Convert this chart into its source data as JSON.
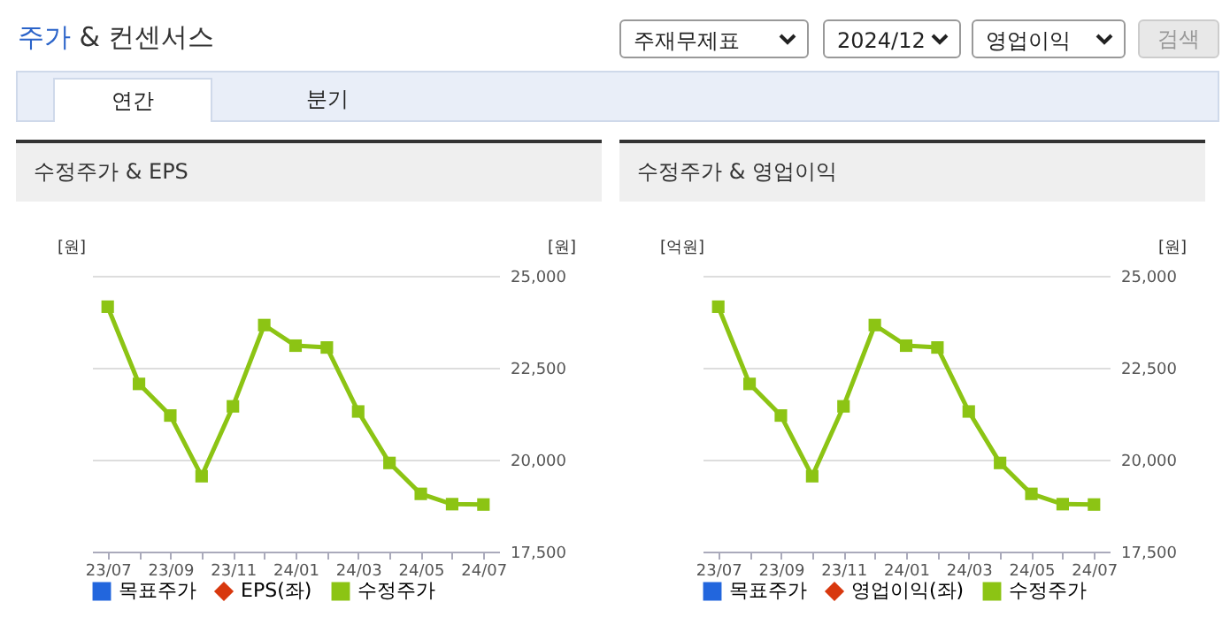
{
  "chart_data": [
    {
      "type": "other",
      "title": "주가 & 컨센서스",
      "annotations": [
        "주재무제표",
        "2024/12",
        "영업이익",
        "검색",
        "연간",
        "분기"
      ]
    },
    {
      "type": "line",
      "title": "수정주가 & EPS",
      "ylabel": "[원]",
      "y2label": "[원]",
      "categories": [
        "23/07",
        null,
        "23/09",
        null,
        "23/11",
        null,
        "24/01",
        null,
        "24/03",
        null,
        "24/05",
        null,
        "24/07"
      ],
      "series": [
        {
          "name": "목표주가",
          "marker": "square",
          "color": "#2266dd",
          "values": [
            null,
            null,
            null,
            null,
            null,
            null,
            null,
            null,
            null,
            null,
            null,
            null,
            null
          ]
        },
        {
          "name": "EPS(좌)",
          "marker": "diamond",
          "color": "#d8380e",
          "values": [
            null,
            null,
            null,
            null,
            null,
            null,
            null,
            null,
            null,
            null,
            null,
            null,
            null
          ]
        },
        {
          "name": "수정주가",
          "axis": "y2",
          "marker": "square",
          "color": "#8cc414",
          "values": [
            24160,
            22060,
            21200,
            19550,
            21450,
            23660,
            23100,
            23050,
            21310,
            19910,
            19070,
            18790,
            18780
          ]
        }
      ],
      "y2lim": [
        17500,
        25000
      ],
      "y2ticks": [
        {
          "value": 17500,
          "label": "17,500"
        },
        {
          "value": 20000,
          "label": "20,000"
        },
        {
          "value": 22500,
          "label": "22,500"
        },
        {
          "value": 25000,
          "label": "25,000"
        }
      ],
      "grid": true,
      "legend": "bottom"
    },
    {
      "type": "line",
      "title": "수정주가 & 영업이익",
      "ylabel": "[억원]",
      "y2label": "[원]",
      "categories": [
        "23/07",
        null,
        "23/09",
        null,
        "23/11",
        null,
        "24/01",
        null,
        "24/03",
        null,
        "24/05",
        null,
        "24/07"
      ],
      "series": [
        {
          "name": "목표주가",
          "marker": "square",
          "color": "#2266dd",
          "values": [
            null,
            null,
            null,
            null,
            null,
            null,
            null,
            null,
            null,
            null,
            null,
            null,
            null
          ]
        },
        {
          "name": "영업이익(좌)",
          "marker": "diamond",
          "color": "#d8380e",
          "values": [
            null,
            null,
            null,
            null,
            null,
            null,
            null,
            null,
            null,
            null,
            null,
            null,
            null
          ]
        },
        {
          "name": "수정주가",
          "axis": "y2",
          "marker": "square",
          "color": "#8cc414",
          "values": [
            24160,
            22060,
            21200,
            19550,
            21450,
            23660,
            23100,
            23050,
            21310,
            19910,
            19070,
            18790,
            18780
          ]
        }
      ],
      "y2lim": [
        17500,
        25000
      ],
      "y2ticks": [
        {
          "value": 17500,
          "label": "17,500"
        },
        {
          "value": 20000,
          "label": "20,000"
        },
        {
          "value": 22500,
          "label": "22,500"
        },
        {
          "value": 25000,
          "label": "25,000"
        }
      ],
      "grid": true,
      "legend": "bottom"
    }
  ]
}
